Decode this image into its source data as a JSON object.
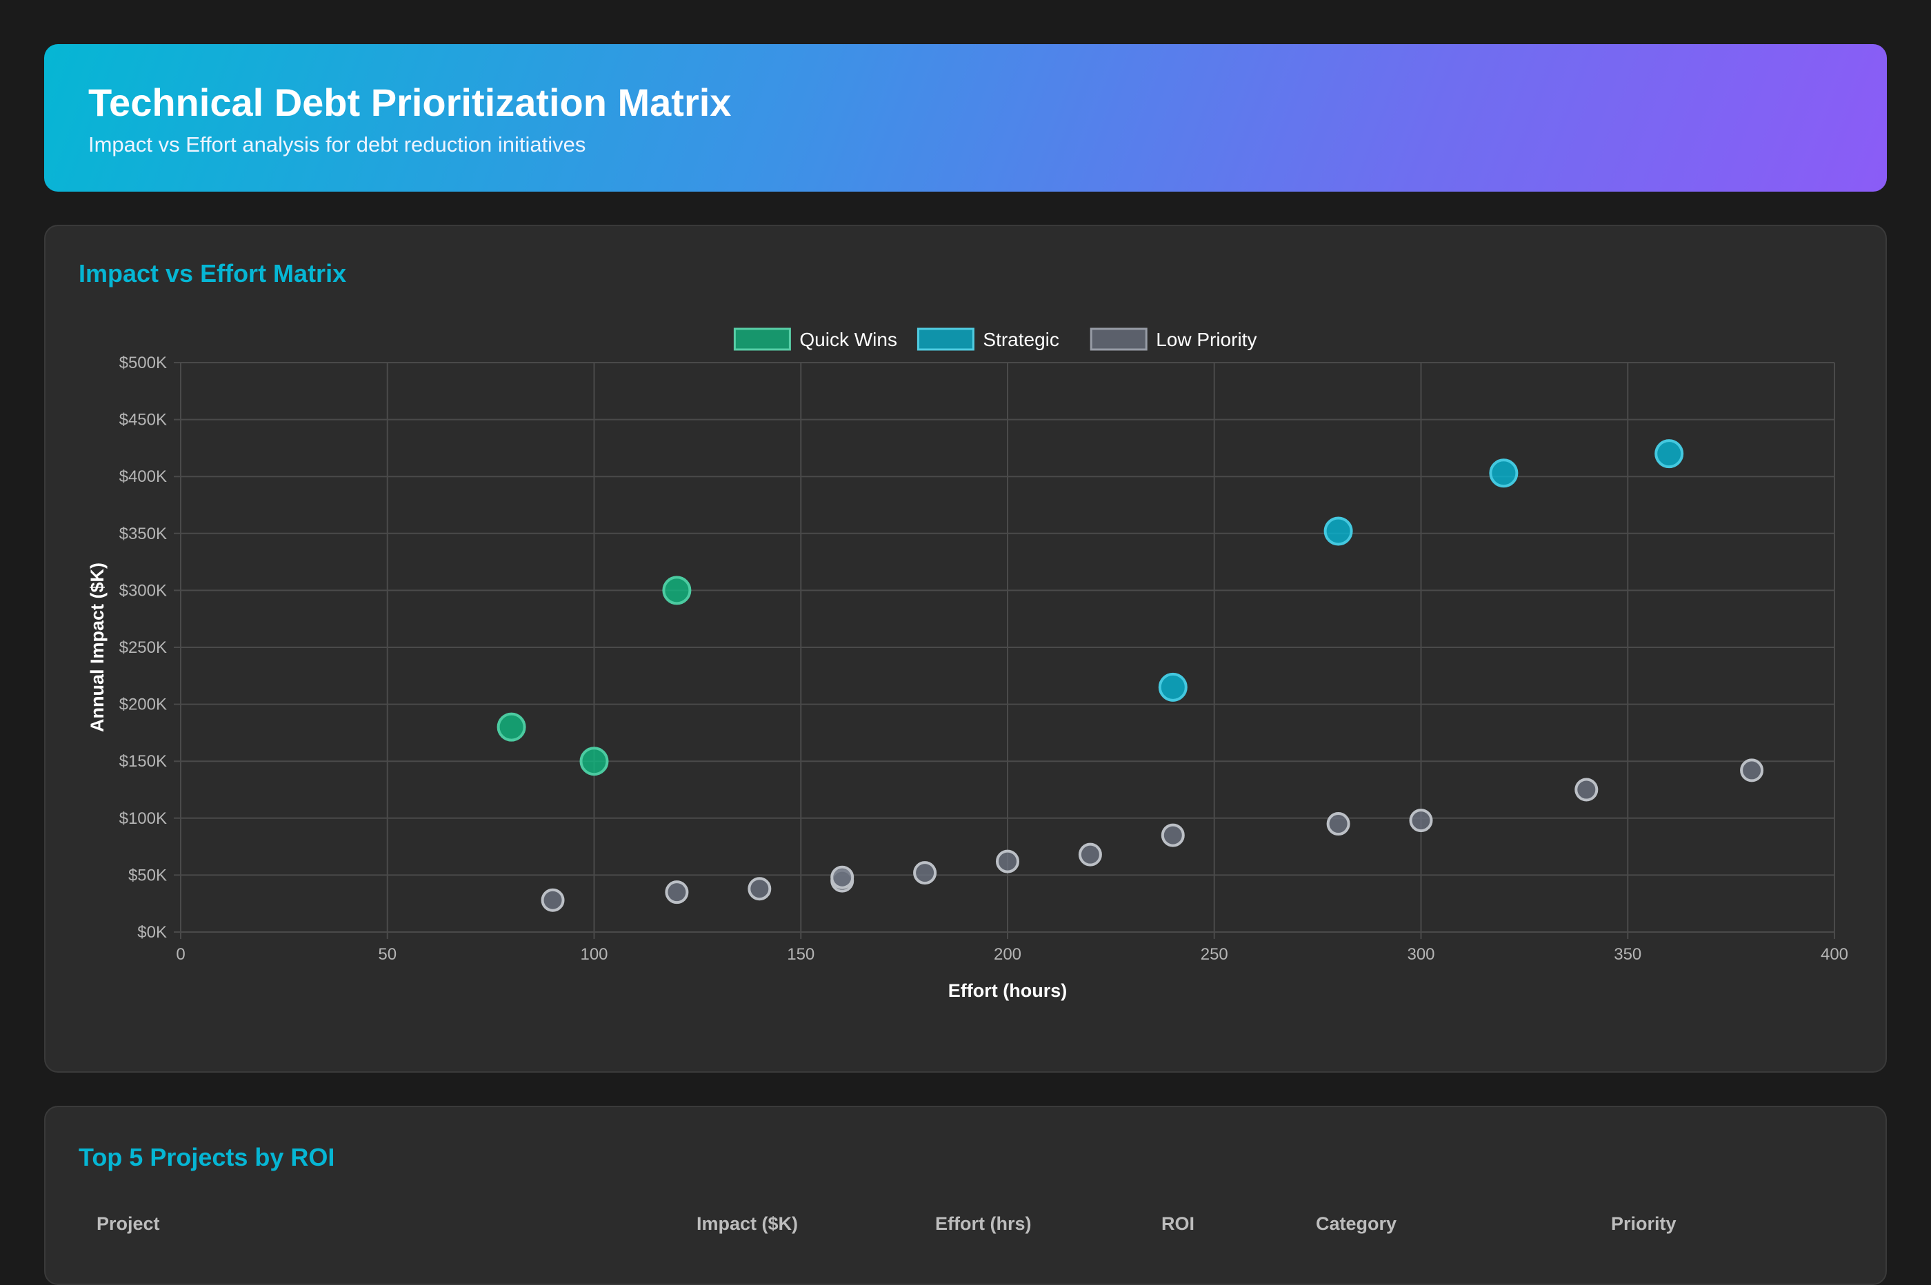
{
  "header": {
    "title": "Technical Debt Prioritization Matrix",
    "subtitle": "Impact vs Effort analysis for debt reduction initiatives"
  },
  "matrix_card": {
    "title": "Impact vs Effort Matrix"
  },
  "table_card": {
    "title": "Top 5 Projects by ROI",
    "columns": [
      "Project",
      "Impact ($K)",
      "Effort (hrs)",
      "ROI",
      "Category",
      "Priority"
    ]
  },
  "chart_data": {
    "type": "scatter",
    "xlabel": "Effort (hours)",
    "ylabel": "Annual Impact ($K)",
    "xlim": [
      0,
      400
    ],
    "ylim": [
      0,
      500
    ],
    "x_ticks": [
      0,
      50,
      100,
      150,
      200,
      250,
      300,
      350,
      400
    ],
    "y_ticks": [
      0,
      50,
      100,
      150,
      200,
      250,
      300,
      350,
      400,
      450,
      500
    ],
    "y_tick_labels": [
      "$0K",
      "$50K",
      "$100K",
      "$150K",
      "$200K",
      "$250K",
      "$300K",
      "$350K",
      "$400K",
      "$450K",
      "$500K"
    ],
    "grid": true,
    "legend_position": "top-center",
    "series": [
      {
        "name": "Quick Wins",
        "color": "#10b981",
        "points": [
          {
            "x": 80,
            "y": 180
          },
          {
            "x": 100,
            "y": 150
          },
          {
            "x": 120,
            "y": 300
          }
        ]
      },
      {
        "name": "Strategic",
        "color": "#06b6d4",
        "points": [
          {
            "x": 240,
            "y": 215
          },
          {
            "x": 280,
            "y": 352
          },
          {
            "x": 320,
            "y": 403
          },
          {
            "x": 360,
            "y": 420
          }
        ]
      },
      {
        "name": "Low Priority",
        "color": "#6b7280",
        "points": [
          {
            "x": 90,
            "y": 28
          },
          {
            "x": 120,
            "y": 35
          },
          {
            "x": 140,
            "y": 38
          },
          {
            "x": 160,
            "y": 45
          },
          {
            "x": 160,
            "y": 48
          },
          {
            "x": 180,
            "y": 52
          },
          {
            "x": 200,
            "y": 62
          },
          {
            "x": 220,
            "y": 68
          },
          {
            "x": 240,
            "y": 85
          },
          {
            "x": 280,
            "y": 95
          },
          {
            "x": 300,
            "y": 98
          },
          {
            "x": 340,
            "y": 125
          },
          {
            "x": 380,
            "y": 142
          }
        ]
      }
    ]
  }
}
